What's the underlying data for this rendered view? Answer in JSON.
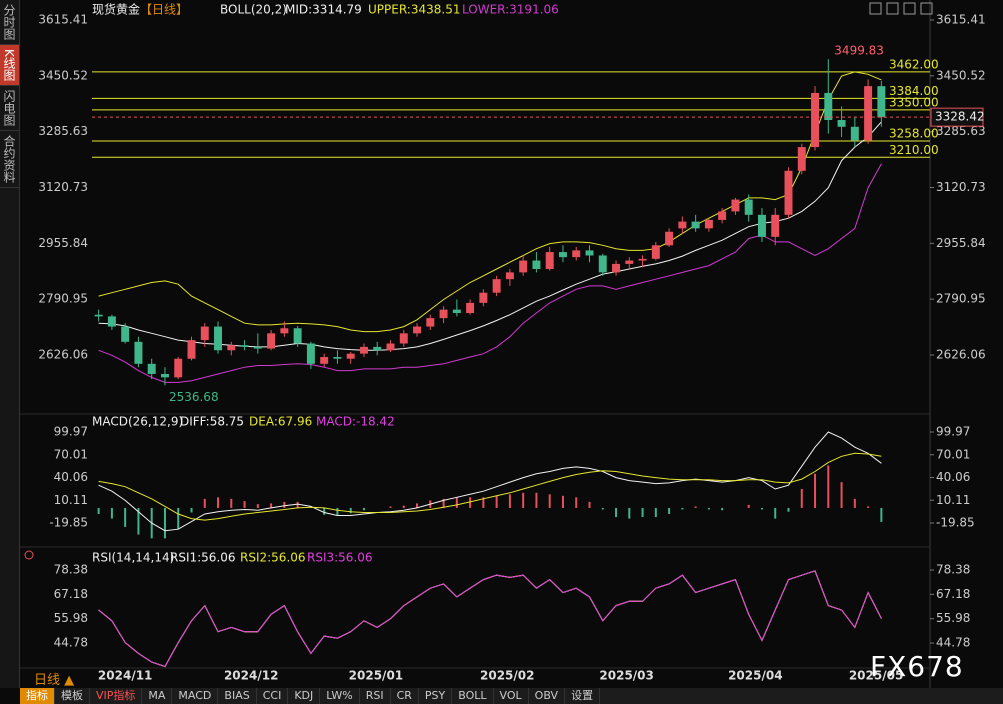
{
  "sidebar": [
    "分时图",
    "K线图",
    "闪电图",
    "合约资料"
  ],
  "chart_data": [
    {
      "type": "candlestick",
      "title": "现货黄金",
      "period": "【日线】",
      "indicator": "BOLL(20,2)",
      "up_color": "#e8505b",
      "down_color": "#3fb68b",
      "ylim": [
        2463.6,
        3644.9
      ],
      "yticks": [
        3615.41,
        3450.52,
        3285.63,
        3120.73,
        2955.84,
        2790.95,
        2626.06
      ],
      "level_color": "#e6e62e",
      "levels": [
        {
          "value": 3462,
          "label": "3462.00"
        },
        {
          "value": 3384,
          "label": "3384.00"
        },
        {
          "value": 3350,
          "label": "3350.00"
        },
        {
          "value": 3258,
          "label": "3258.00"
        },
        {
          "value": 3210,
          "label": "3210.00"
        }
      ],
      "candles": [
        [
          2745,
          2760,
          2725,
          2740
        ],
        [
          2740,
          2745,
          2700,
          2710
        ],
        [
          2710,
          2720,
          2660,
          2665
        ],
        [
          2665,
          2680,
          2590,
          2600
        ],
        [
          2600,
          2615,
          2555,
          2570
        ],
        [
          2570,
          2590,
          2536.68,
          2560
        ],
        [
          2560,
          2620,
          2555,
          2615
        ],
        [
          2615,
          2680,
          2610,
          2670
        ],
        [
          2670,
          2720,
          2650,
          2710
        ],
        [
          2710,
          2725,
          2630,
          2640
        ],
        [
          2640,
          2665,
          2625,
          2655
        ],
        [
          2655,
          2670,
          2640,
          2650
        ],
        [
          2650,
          2690,
          2630,
          2645
        ],
        [
          2645,
          2700,
          2640,
          2690
        ],
        [
          2690,
          2725,
          2680,
          2705
        ],
        [
          2705,
          2712,
          2650,
          2660
        ],
        [
          2660,
          2665,
          2585,
          2600
        ],
        [
          2600,
          2630,
          2590,
          2620
        ],
        [
          2620,
          2640,
          2600,
          2615
        ],
        [
          2615,
          2635,
          2600,
          2630
        ],
        [
          2630,
          2660,
          2620,
          2650
        ],
        [
          2650,
          2665,
          2625,
          2640
        ],
        [
          2640,
          2670,
          2635,
          2660
        ],
        [
          2660,
          2700,
          2650,
          2690
        ],
        [
          2690,
          2720,
          2680,
          2710
        ],
        [
          2710,
          2745,
          2700,
          2735
        ],
        [
          2735,
          2770,
          2720,
          2760
        ],
        [
          2760,
          2790,
          2740,
          2750
        ],
        [
          2750,
          2790,
          2745,
          2780
        ],
        [
          2780,
          2820,
          2770,
          2810
        ],
        [
          2810,
          2860,
          2800,
          2850
        ],
        [
          2850,
          2880,
          2830,
          2870
        ],
        [
          2870,
          2920,
          2860,
          2905
        ],
        [
          2905,
          2930,
          2870,
          2880
        ],
        [
          2880,
          2945,
          2875,
          2930
        ],
        [
          2930,
          2950,
          2900,
          2915
        ],
        [
          2915,
          2945,
          2905,
          2935
        ],
        [
          2935,
          2950,
          2900,
          2920
        ],
        [
          2920,
          2925,
          2860,
          2870
        ],
        [
          2870,
          2905,
          2860,
          2895
        ],
        [
          2895,
          2915,
          2880,
          2905
        ],
        [
          2905,
          2920,
          2885,
          2910
        ],
        [
          2910,
          2960,
          2905,
          2950
        ],
        [
          2950,
          3000,
          2945,
          2990
        ],
        [
          3000,
          3035,
          2985,
          3020
        ],
        [
          3020,
          3040,
          2990,
          3000
        ],
        [
          3000,
          3030,
          2990,
          3025
        ],
        [
          3025,
          3060,
          3015,
          3050
        ],
        [
          3050,
          3090,
          3040,
          3085
        ],
        [
          3085,
          3100,
          3020,
          3040
        ],
        [
          3040,
          3060,
          2960,
          2975
        ],
        [
          2975,
          3060,
          2950,
          3040
        ],
        [
          3040,
          3180,
          3030,
          3170
        ],
        [
          3170,
          3250,
          3160,
          3240
        ],
        [
          3240,
          3420,
          3230,
          3400
        ],
        [
          3400,
          3499.83,
          3280,
          3320
        ],
        [
          3320,
          3360,
          3270,
          3300
        ],
        [
          3300,
          3330,
          3240,
          3260
        ],
        [
          3260,
          3440,
          3250,
          3420
        ],
        [
          3420,
          3435,
          3300,
          3328.42
        ]
      ],
      "series": [
        {
          "name": "MID:3314.79",
          "color": "#f2f2f2",
          "values": [
            2720,
            2718,
            2712,
            2700,
            2690,
            2680,
            2670,
            2665,
            2660,
            2658,
            2655,
            2652,
            2650,
            2650,
            2655,
            2660,
            2658,
            2650,
            2645,
            2642,
            2640,
            2640,
            2642,
            2645,
            2650,
            2660,
            2672,
            2685,
            2698,
            2712,
            2728,
            2745,
            2765,
            2785,
            2800,
            2818,
            2835,
            2850,
            2865,
            2872,
            2880,
            2888,
            2895,
            2905,
            2918,
            2935,
            2950,
            2965,
            2985,
            3005,
            3015,
            3020,
            3030,
            3050,
            3080,
            3120,
            3200,
            3240,
            3270,
            3314.79
          ]
        },
        {
          "name": "UPPER:3438.51",
          "color": "#e6e62e",
          "values": [
            2800,
            2810,
            2820,
            2830,
            2840,
            2845,
            2835,
            2800,
            2780,
            2760,
            2740,
            2720,
            2715,
            2715,
            2718,
            2720,
            2718,
            2715,
            2710,
            2700,
            2695,
            2695,
            2700,
            2710,
            2730,
            2760,
            2790,
            2815,
            2840,
            2860,
            2880,
            2900,
            2920,
            2940,
            2955,
            2960,
            2960,
            2958,
            2950,
            2940,
            2935,
            2935,
            2940,
            2960,
            2985,
            3010,
            3030,
            3050,
            3070,
            3090,
            3090,
            3085,
            3100,
            3180,
            3280,
            3380,
            3450,
            3462,
            3455,
            3438.51
          ]
        },
        {
          "name": "LOWER:3191.06",
          "color": "#d23ad2",
          "values": [
            2640,
            2625,
            2605,
            2580,
            2560,
            2545,
            2545,
            2550,
            2560,
            2570,
            2580,
            2590,
            2595,
            2595,
            2598,
            2600,
            2598,
            2590,
            2580,
            2580,
            2585,
            2585,
            2585,
            2590,
            2590,
            2595,
            2600,
            2610,
            2620,
            2630,
            2650,
            2680,
            2720,
            2750,
            2780,
            2800,
            2820,
            2830,
            2830,
            2820,
            2830,
            2840,
            2850,
            2860,
            2870,
            2880,
            2890,
            2910,
            2930,
            2970,
            2980,
            2960,
            2960,
            2940,
            2920,
            2940,
            2970,
            3000,
            3120,
            3191.06
          ]
        }
      ]
    },
    {
      "type": "macd",
      "title": "MACD(26,12,9)",
      "up_color": "#e8505b",
      "down_color": "#3fb68b",
      "ylim": [
        -42.2,
        109.2
      ],
      "yticks": [
        99.97,
        70.01,
        40.06,
        10.11,
        -19.85
      ],
      "series": [
        {
          "name": "DIFF:58.75",
          "color": "#f2f2f2",
          "values": [
            30,
            22,
            10,
            -5,
            -20,
            -30,
            -28,
            -18,
            -8,
            -5,
            -3,
            -2,
            -3,
            0,
            3,
            5,
            2,
            -6,
            -10,
            -10,
            -8,
            -6,
            -5,
            -3,
            0,
            5,
            10,
            14,
            18,
            22,
            28,
            34,
            40,
            45,
            48,
            52,
            54,
            52,
            48,
            40,
            36,
            34,
            32,
            33,
            36,
            38,
            36,
            34,
            36,
            40,
            36,
            25,
            30,
            55,
            80,
            100,
            92,
            80,
            72,
            58.75
          ]
        },
        {
          "name": "DEA:67.96",
          "color": "#e6e62e",
          "values": [
            35,
            32,
            28,
            20,
            12,
            2,
            -8,
            -14,
            -16,
            -14,
            -11,
            -8,
            -6,
            -4,
            -2,
            0,
            1,
            0,
            -3,
            -5,
            -6,
            -6,
            -6,
            -5,
            -4,
            -2,
            1,
            4,
            8,
            12,
            16,
            20,
            25,
            30,
            35,
            40,
            44,
            47,
            49,
            48,
            45,
            42,
            40,
            38,
            37,
            37,
            37,
            36,
            36,
            37,
            37,
            34,
            33,
            38,
            48,
            60,
            68,
            72,
            71,
            67.96
          ]
        },
        {
          "name": "MACD:-18.42",
          "color": "#e040e0",
          "values": [
            -8,
            -14,
            -25,
            -35,
            -40,
            -40,
            -28,
            -6,
            12,
            14,
            12,
            9,
            5,
            6,
            8,
            8,
            2,
            -9,
            -10,
            -7,
            -3,
            0,
            2,
            3,
            6,
            10,
            12,
            14,
            14,
            14,
            16,
            18,
            20,
            20,
            18,
            16,
            14,
            8,
            -2,
            -12,
            -14,
            -12,
            -12,
            -8,
            -2,
            2,
            -2,
            -3,
            0,
            4,
            -2,
            -14,
            -5,
            25,
            45,
            56,
            34,
            12,
            2,
            -18.42
          ]
        }
      ]
    },
    {
      "type": "line",
      "title": "RSI(14,14,14)",
      "ylim": [
        33.3,
        83.0
      ],
      "yticks": [
        78.38,
        67.18,
        55.98,
        44.78
      ],
      "xticks": [
        {
          "value": 2,
          "label": "2024/11"
        },
        {
          "value": 11.5,
          "label": "2024/12"
        },
        {
          "value": 20.9,
          "label": "2025/01"
        },
        {
          "value": 30.8,
          "label": "2025/02"
        },
        {
          "value": 39.8,
          "label": "2025/03"
        },
        {
          "value": 49.5,
          "label": "2025/04"
        },
        {
          "value": 58.6,
          "label": "2025/05"
        }
      ],
      "series": [
        {
          "name": "RSI1:56.06",
          "color": "#f2f2f2",
          "values": [
            60,
            55,
            45,
            40,
            36,
            34,
            45,
            55,
            62,
            50,
            52,
            50,
            50,
            58,
            62,
            50,
            40,
            48,
            47,
            50,
            55,
            52,
            56,
            62,
            66,
            70,
            72,
            66,
            70,
            74,
            76,
            75,
            76,
            70,
            74,
            68,
            70,
            66,
            55,
            62,
            64,
            64,
            70,
            72,
            76,
            68,
            70,
            72,
            74,
            58,
            46,
            60,
            74,
            76,
            78,
            62,
            60,
            52,
            68,
            56.06
          ]
        },
        {
          "name": "RSI2:56.06",
          "color": "#e6e62e",
          "values": [
            60,
            55,
            45,
            40,
            36,
            34,
            45,
            55,
            62,
            50,
            52,
            50,
            50,
            58,
            62,
            50,
            40,
            48,
            47,
            50,
            55,
            52,
            56,
            62,
            66,
            70,
            72,
            66,
            70,
            74,
            76,
            75,
            76,
            70,
            74,
            68,
            70,
            66,
            55,
            62,
            64,
            64,
            70,
            72,
            76,
            68,
            70,
            72,
            74,
            58,
            46,
            60,
            74,
            76,
            78,
            62,
            60,
            52,
            68,
            56.06
          ]
        },
        {
          "name": "RSI3:56.06",
          "color": "#e040e0",
          "values": [
            60,
            55,
            45,
            40,
            36,
            34,
            45,
            55,
            62,
            50,
            52,
            50,
            50,
            58,
            62,
            50,
            40,
            48,
            47,
            50,
            55,
            52,
            56,
            62,
            66,
            70,
            72,
            66,
            70,
            74,
            76,
            75,
            76,
            70,
            74,
            68,
            70,
            66,
            55,
            62,
            64,
            64,
            70,
            72,
            76,
            68,
            70,
            72,
            74,
            58,
            46,
            60,
            74,
            76,
            78,
            62,
            60,
            52,
            68,
            56.06
          ]
        }
      ]
    }
  ],
  "period_button": "日线 ▲",
  "toolbar": [
    "指标",
    "模板",
    "VIP指标",
    "MA",
    "MACD",
    "BIAS",
    "CCI",
    "KDJ",
    "LW%",
    "RSI",
    "CR",
    "PSY",
    "BOLL",
    "VOL",
    "OBV",
    "设置"
  ],
  "watermark": "FX678"
}
